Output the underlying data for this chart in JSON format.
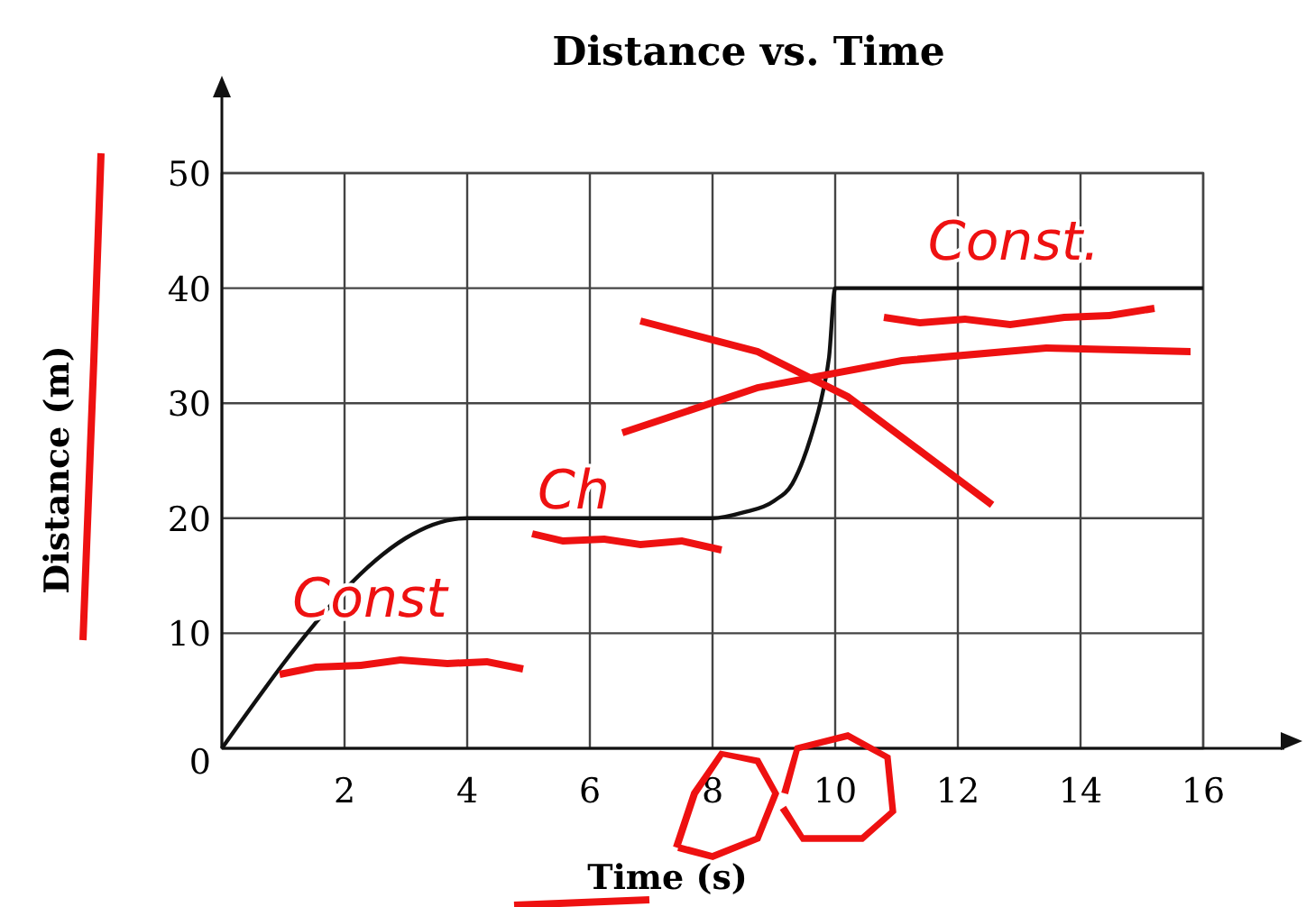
{
  "chart_data": {
    "type": "line",
    "title": "Distance vs. Time",
    "xlabel": "Time (s)",
    "ylabel": "Distance (m)",
    "x": [
      0,
      4,
      8,
      8.5,
      9,
      9.3,
      9.6,
      9.8,
      9.9,
      10,
      16
    ],
    "series": [
      {
        "color": "#111111",
        "values": [
          0,
          20,
          20,
          20.5,
          21.5,
          23,
          27,
          31,
          34,
          40,
          40
        ]
      }
    ],
    "xlim": [
      0,
      16
    ],
    "ylim": [
      0,
      50
    ],
    "xticks": [
      {
        "value": 0,
        "label": null
      },
      2,
      4,
      6,
      8,
      10,
      12,
      14,
      16
    ],
    "yticks": [
      0,
      10,
      20,
      30,
      40,
      50
    ],
    "grid": true,
    "marker": "none",
    "line_style": "solid",
    "annotations": [
      "Const",
      "Ch",
      "Const."
    ]
  }
}
